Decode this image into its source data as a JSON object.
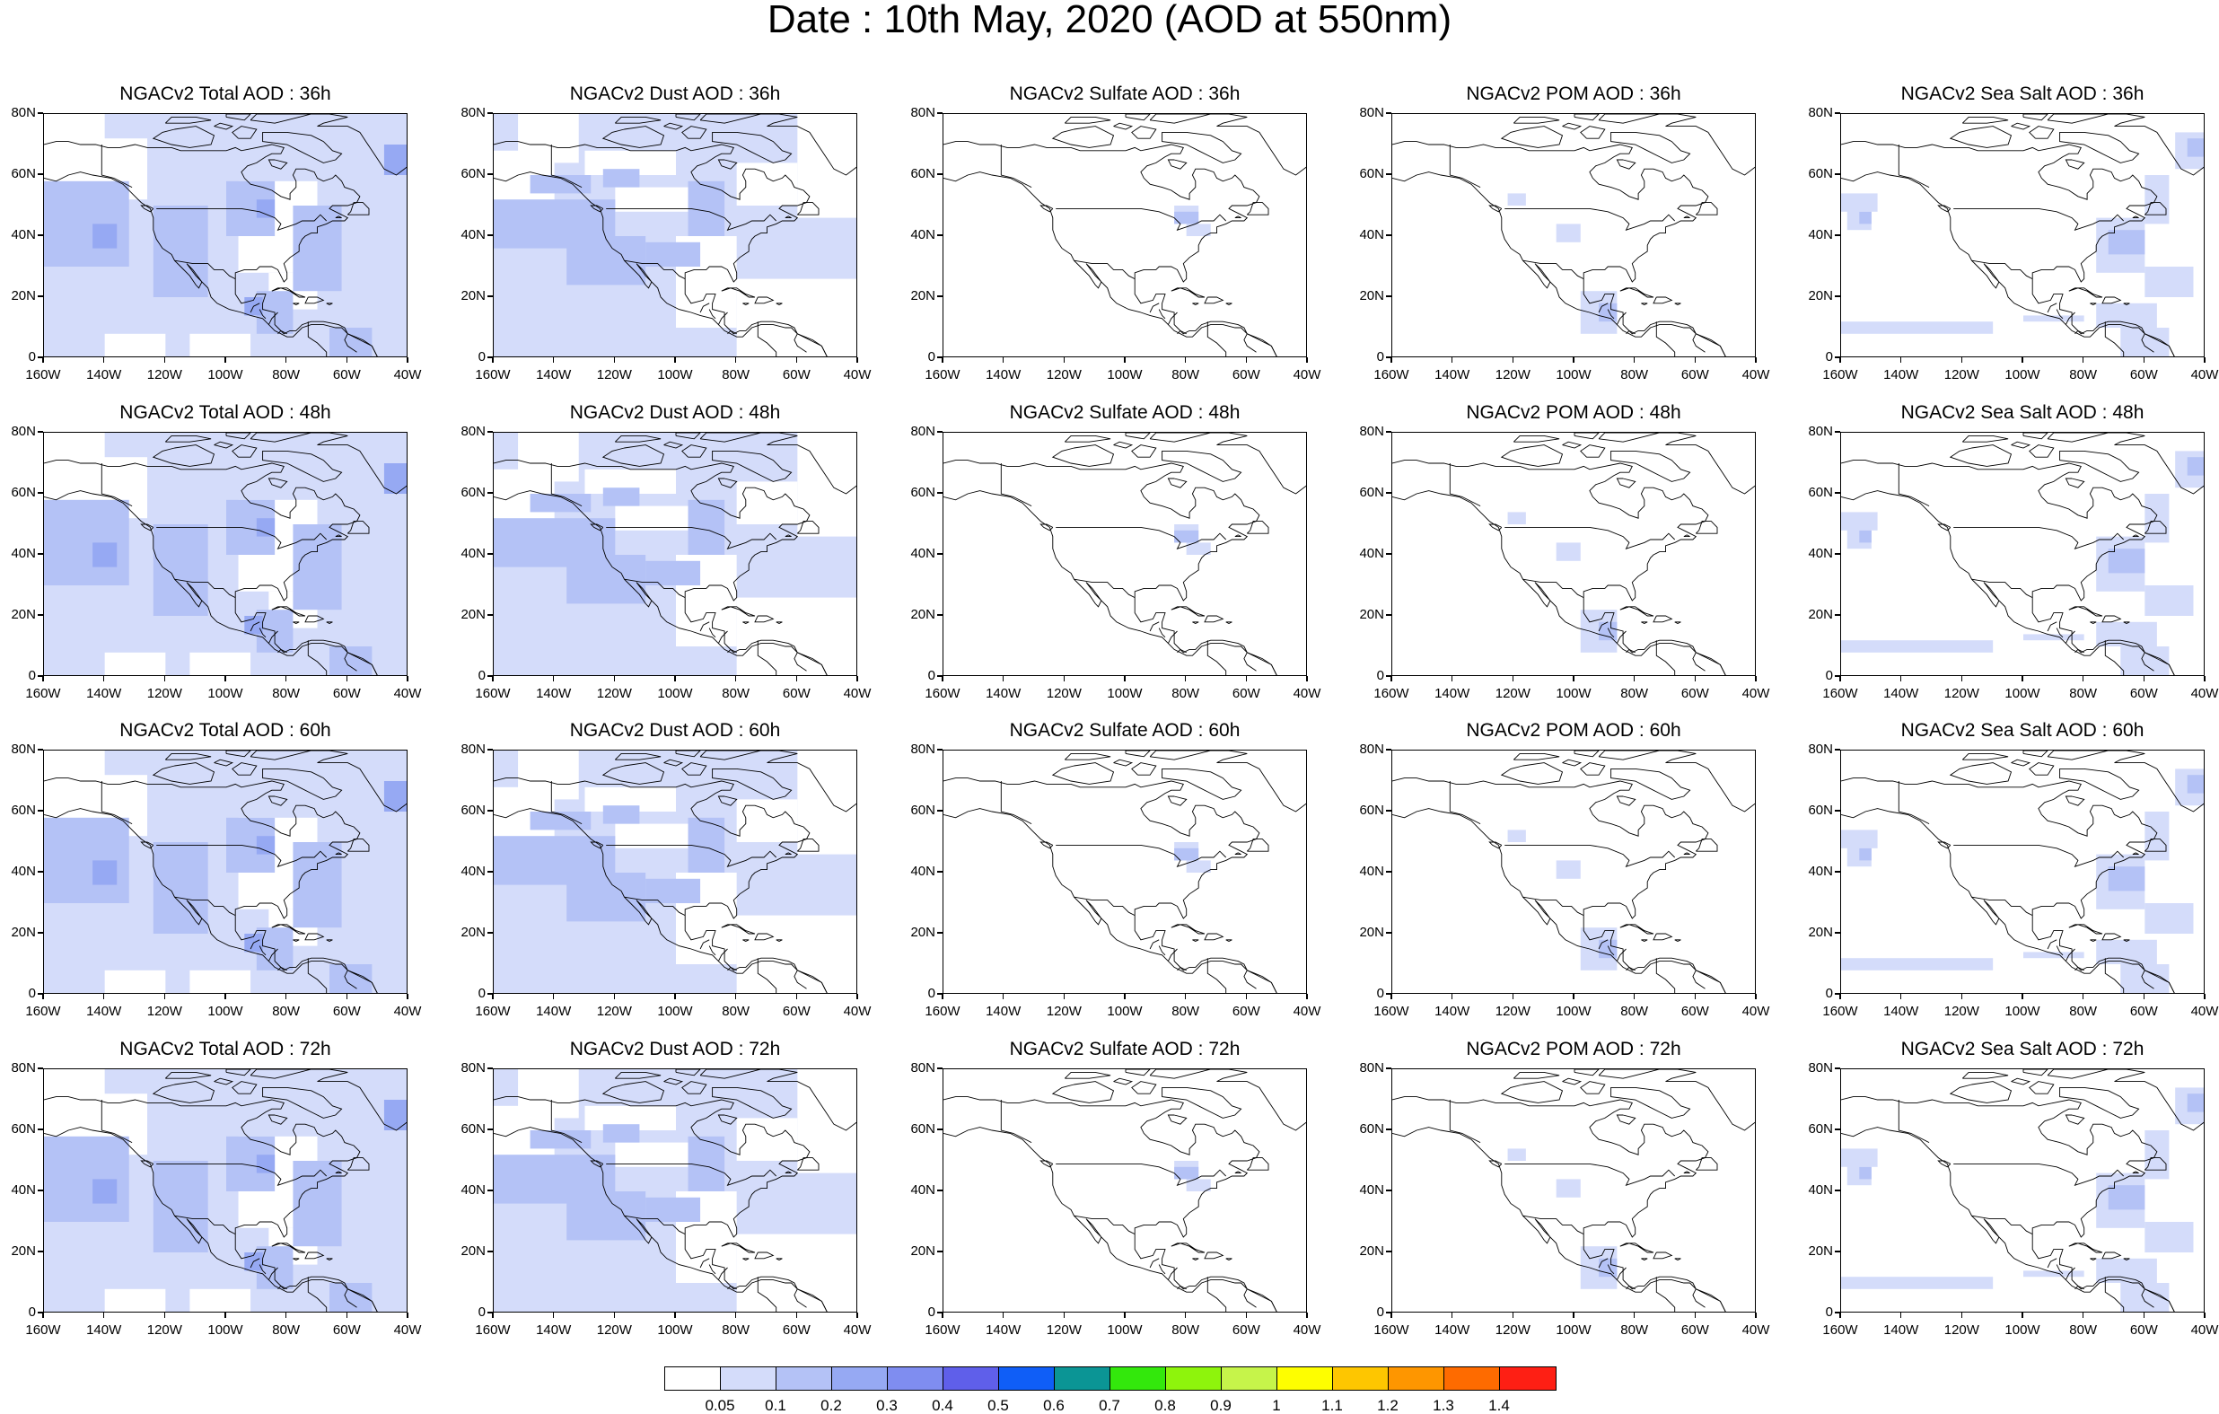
{
  "title": "Date : 10th May, 2020 (AOD at 550nm)",
  "axes": {
    "x_ticks": [
      "160W",
      "140W",
      "120W",
      "100W",
      "80W",
      "60W",
      "40W"
    ],
    "y_ticks": [
      "80N",
      "60N",
      "40N",
      "20N",
      "0"
    ],
    "lon_range": [
      -160,
      -40
    ],
    "lat_range": [
      0,
      80
    ]
  },
  "rows": [
    {
      "hour": "36h",
      "titles": [
        "NGACv2 Total AOD : 36h",
        "NGACv2 Dust AOD : 36h",
        "NGACv2 Sulfate AOD : 36h",
        "NGACv2 POM AOD : 36h",
        "NGACv2 Sea Salt AOD : 36h"
      ]
    },
    {
      "hour": "48h",
      "titles": [
        "NGACv2 Total AOD : 48h",
        "NGACv2 Dust AOD : 48h",
        "NGACv2 Sulfate AOD : 48h",
        "NGACv2 POM AOD : 48h",
        "NGACv2 Sea Salt AOD : 48h"
      ]
    },
    {
      "hour": "60h",
      "titles": [
        "NGACv2 Total AOD : 60h",
        "NGACv2 Dust AOD : 60h",
        "NGACv2 Sulfate AOD : 60h",
        "NGACv2 POM AOD : 60h",
        "NGACv2 Sea Salt AOD : 60h"
      ]
    },
    {
      "hour": "72h",
      "titles": [
        "NGACv2 Total AOD : 72h",
        "NGACv2 Dust AOD : 72h",
        "NGACv2 Sulfate AOD : 72h",
        "NGACv2 POM AOD : 72h",
        "NGACv2 Sea Salt  AOD : 72h"
      ]
    }
  ],
  "colorbar": {
    "labels": [
      "0.05",
      "0.1",
      "0.2",
      "0.3",
      "0.4",
      "0.5",
      "0.6",
      "0.7",
      "0.8",
      "0.9",
      "1",
      "1.1",
      "1.2",
      "1.3",
      "1.4"
    ],
    "colors": [
      "#ffffff",
      "#d4dcfa",
      "#b4c2f6",
      "#96a9f3",
      "#7f8df0",
      "#5f5fea",
      "#0f5ef7",
      "#0b9595",
      "#33e80c",
      "#8ef40c",
      "#c6f44a",
      "#fefe00",
      "#fec600",
      "#fe9600",
      "#fe6b00",
      "#fe1f14"
    ]
  }
}
